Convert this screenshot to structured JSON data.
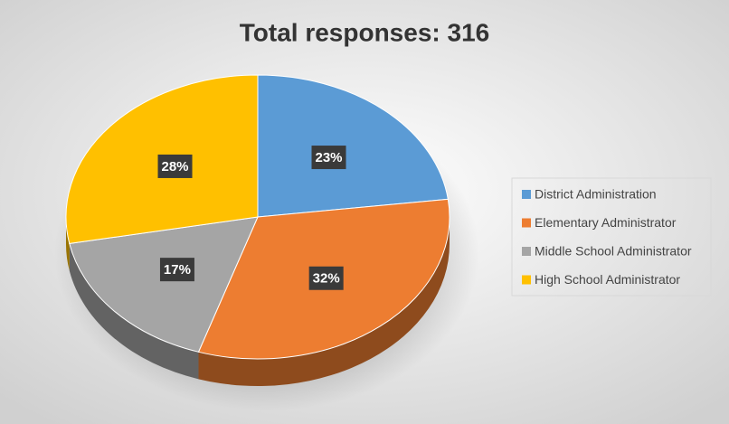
{
  "chart_data": {
    "type": "pie",
    "title": "Total responses: 316",
    "categories": [
      "District Administration",
      "Elementary Administrator",
      "Middle School Administrator",
      "High School Administrator"
    ],
    "values": [
      23,
      32,
      17,
      28
    ],
    "value_labels": [
      "23%",
      "32%",
      "17%",
      "28%"
    ],
    "colors": [
      "#5b9bd5",
      "#ed7d31",
      "#a5a5a5",
      "#ffc000"
    ],
    "legend": "right"
  }
}
